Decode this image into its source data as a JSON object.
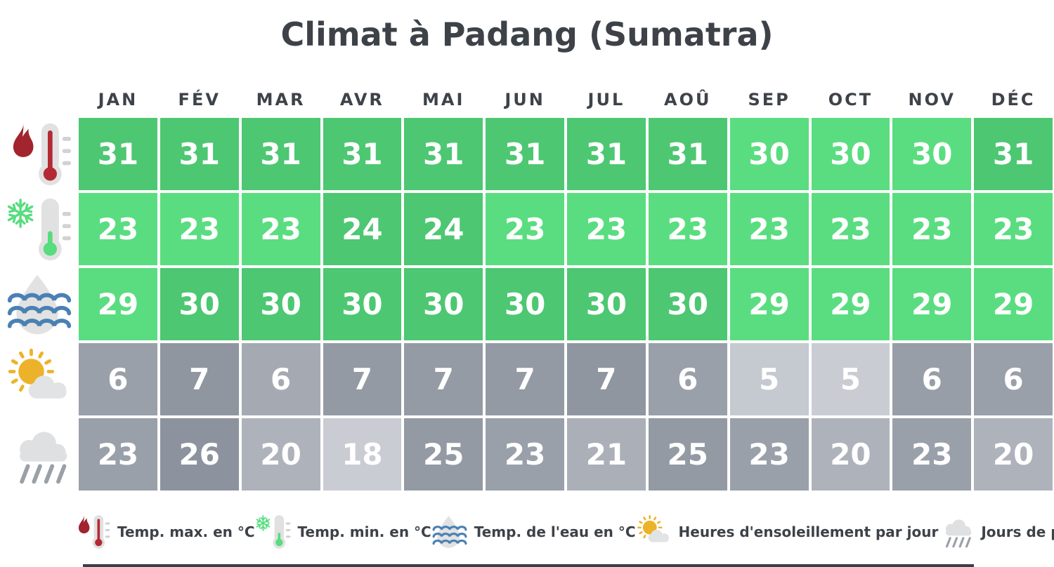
{
  "title": "Climat à Padang (Sumatra)",
  "chart_data": {
    "type": "table",
    "title": "Climat à Padang (Sumatra)",
    "categories": [
      "JAN",
      "FÉV",
      "MAR",
      "AVR",
      "MAI",
      "JUN",
      "JUL",
      "AOÛ",
      "SEP",
      "OCT",
      "NOV",
      "DÉC"
    ],
    "series": [
      {
        "name": "Temp. max. en °C",
        "values": [
          31,
          31,
          31,
          31,
          31,
          31,
          31,
          31,
          30,
          30,
          30,
          31
        ]
      },
      {
        "name": "Temp. min. en °C",
        "values": [
          23,
          23,
          23,
          24,
          24,
          23,
          23,
          23,
          23,
          23,
          23,
          23
        ]
      },
      {
        "name": "Temp. de l'eau en °C",
        "values": [
          29,
          30,
          30,
          30,
          30,
          30,
          30,
          30,
          29,
          29,
          29,
          29
        ]
      },
      {
        "name": "Heures d'ensoleillement par jour",
        "values": [
          6,
          7,
          6,
          7,
          7,
          7,
          7,
          6,
          5,
          5,
          6,
          6
        ]
      },
      {
        "name": "Jours de pluie",
        "values": [
          23,
          26,
          20,
          18,
          25,
          23,
          21,
          25,
          23,
          20,
          23,
          20
        ]
      }
    ]
  },
  "colors": {
    "green_strong": "#4dc772",
    "green_light": "#5add80",
    "title_text": "#3d4248",
    "cell_text": "#ffffff"
  },
  "row_styles": [
    {
      "icon": "flame-thermometer-icon",
      "cell_colors": [
        "#4dc772",
        "#4dc772",
        "#4dc772",
        "#4dc772",
        "#4dc772",
        "#4dc772",
        "#4dc772",
        "#4dc772",
        "#5add80",
        "#5add80",
        "#5add80",
        "#4dc772"
      ]
    },
    {
      "icon": "snowflake-thermometer-icon",
      "cell_colors": [
        "#5add80",
        "#5add80",
        "#5add80",
        "#4dc772",
        "#4dc772",
        "#5add80",
        "#5add80",
        "#5add80",
        "#5add80",
        "#5add80",
        "#5add80",
        "#5add80"
      ]
    },
    {
      "icon": "water-waves-icon",
      "cell_colors": [
        "#5add80",
        "#4dc772",
        "#4dc772",
        "#4dc772",
        "#4dc772",
        "#4dc772",
        "#4dc772",
        "#4dc772",
        "#5add80",
        "#5add80",
        "#5add80",
        "#5add80"
      ]
    },
    {
      "icon": "sun-cloud-icon",
      "cell_colors": [
        "#9aa0a9",
        "#8f96a0",
        "#a5aab2",
        "#949aa4",
        "#959ba4",
        "#949aa4",
        "#8f96a0",
        "#9aa0a9",
        "#c5c9d0",
        "#c9cdd3",
        "#989ea7",
        "#9aa0a9"
      ]
    },
    {
      "icon": "rain-cloud-icon",
      "cell_colors": [
        "#9aa0a9",
        "#8d939e",
        "#aeb3bb",
        "#c9ccd3",
        "#939aa3",
        "#9aa0a9",
        "#abb0b8",
        "#939aa3",
        "#9aa0a9",
        "#aeb3bb",
        "#9aa0a9",
        "#aeb3bb"
      ]
    }
  ]
}
